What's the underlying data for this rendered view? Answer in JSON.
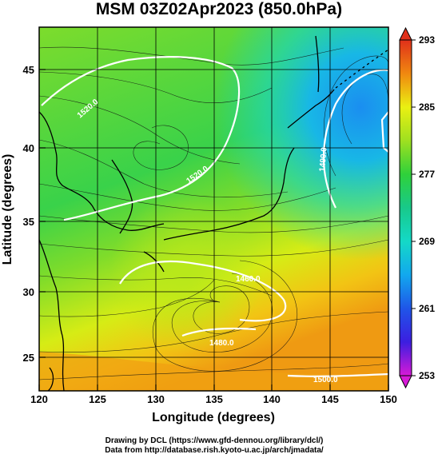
{
  "title": "MSM 03Z02Apr2023 (850.0hPa)",
  "axes": {
    "xlabel": "Longitude (degrees)",
    "ylabel": "Latitude  (degrees)",
    "xticks": [
      "120",
      "125",
      "130",
      "135",
      "140",
      "145",
      "150"
    ],
    "yticks": [
      "25",
      "30",
      "35",
      "40",
      "45"
    ],
    "xlim": [
      120,
      150
    ],
    "ylim": [
      22.4,
      47.6
    ]
  },
  "colorbar": {
    "ticks": [
      "253",
      "261",
      "269",
      "277",
      "285",
      "293"
    ],
    "range": [
      253,
      293
    ],
    "colors": {
      "c253": "#d71ad7",
      "c257": "#3c1ee0",
      "c261": "#1f55e8",
      "c265": "#12a8ee",
      "c269": "#14d9c7",
      "c273": "#18c98a",
      "c277": "#2fd13a",
      "c281": "#9fe020",
      "c285": "#eaf012",
      "c289": "#f08810",
      "c293": "#e0301a"
    }
  },
  "contours": {
    "labels": [
      "1520.0",
      "1490.0",
      "1460.0",
      "1480.0",
      "1520.0",
      "1500.0"
    ]
  },
  "credits": {
    "line1": "Drawing by DCL (https://www.gfd-dennou.org/library/dcl/)",
    "line2": "Data from http://database.rish.kyoto-u.ac.jp/arch/jmadata/"
  }
}
